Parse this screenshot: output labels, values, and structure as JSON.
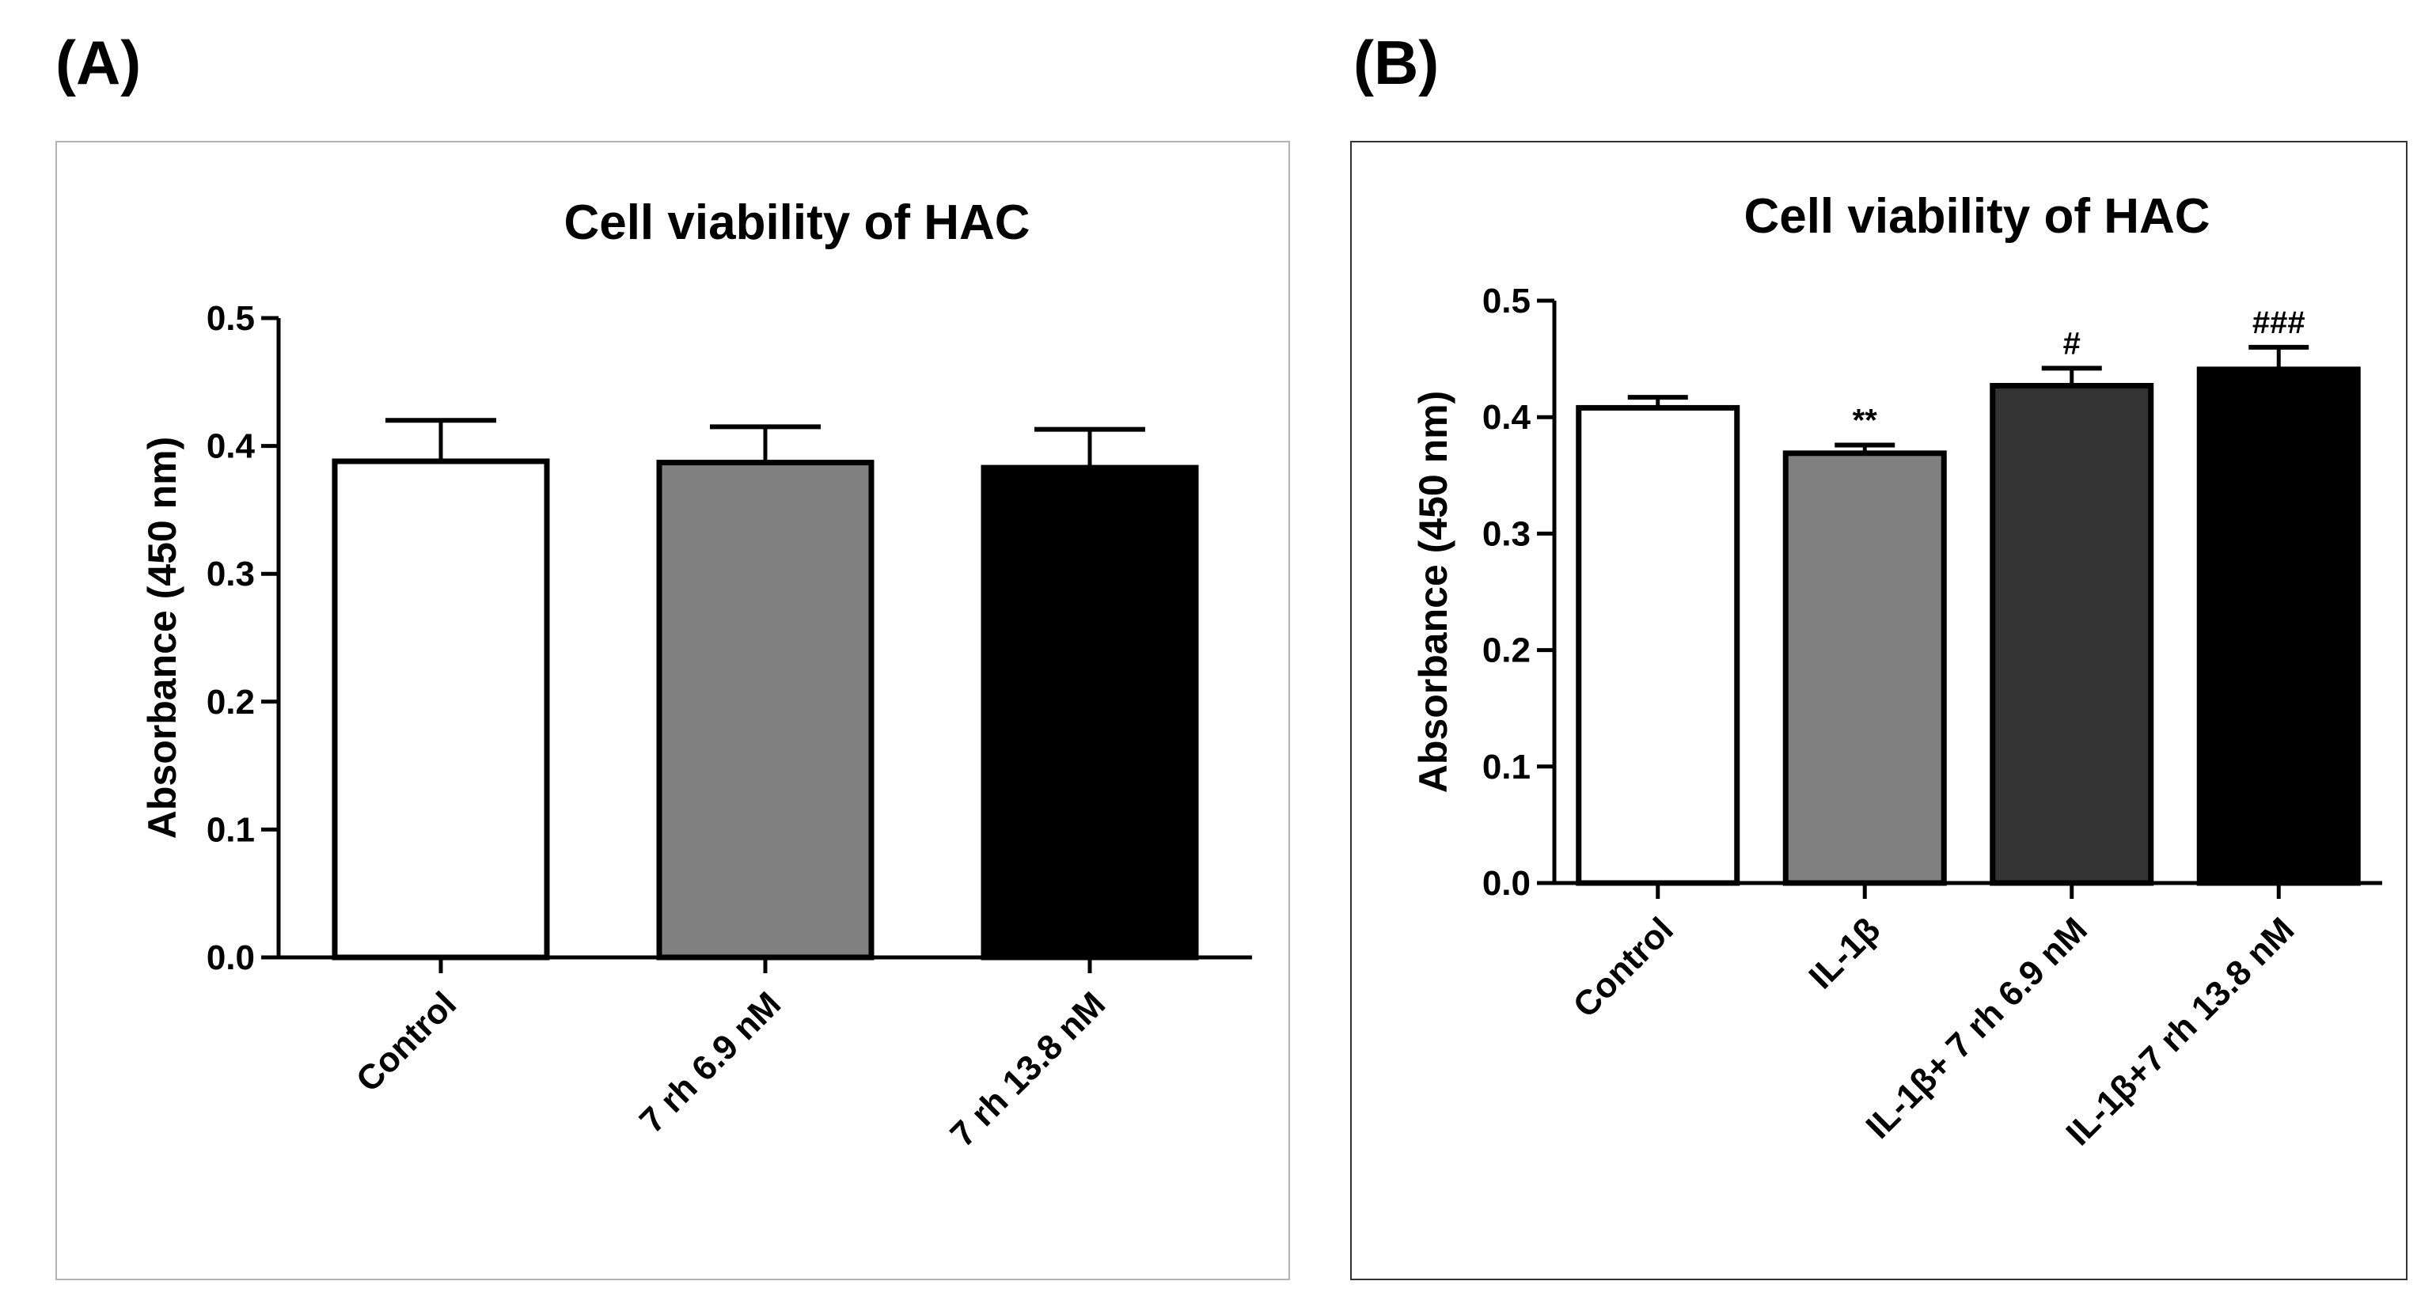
{
  "panels": [
    {
      "label": "(A)"
    },
    {
      "label": "(B)"
    }
  ],
  "chart_data": [
    {
      "type": "bar",
      "title": "Cell viability of HAC",
      "xlabel": "",
      "ylabel": "Absorbance (450 nm)",
      "ylim": [
        0,
        0.5
      ],
      "yticks": [
        "0.0",
        "0.1",
        "0.2",
        "0.3",
        "0.4",
        "0.5"
      ],
      "categories": [
        "Control",
        "7 rh 6.9 nM",
        "7 rh 13.8 nM"
      ],
      "values": [
        0.388,
        0.387,
        0.383
      ],
      "errors": [
        0.032,
        0.028,
        0.03
      ],
      "colors": [
        "#ffffff",
        "#808080",
        "#000000"
      ],
      "annotations": [
        "",
        "",
        ""
      ]
    },
    {
      "type": "bar",
      "title": "Cell viability of HAC",
      "xlabel": "",
      "ylabel": "Absorbance (450 nm)",
      "ylim": [
        0,
        0.5
      ],
      "yticks": [
        "0.0",
        "0.1",
        "0.2",
        "0.3",
        "0.4",
        "0.5"
      ],
      "categories": [
        "Control",
        "IL-1β",
        "IL-1β+ 7 rh 6.9 nM",
        "IL-1β+7 rh 13.8 nM"
      ],
      "values": [
        0.408,
        0.369,
        0.427,
        0.441
      ],
      "errors": [
        0.009,
        0.007,
        0.015,
        0.019
      ],
      "colors": [
        "#ffffff",
        "#808080",
        "#333333",
        "#000000"
      ],
      "annotations": [
        "",
        "**",
        "#",
        "###"
      ]
    }
  ]
}
